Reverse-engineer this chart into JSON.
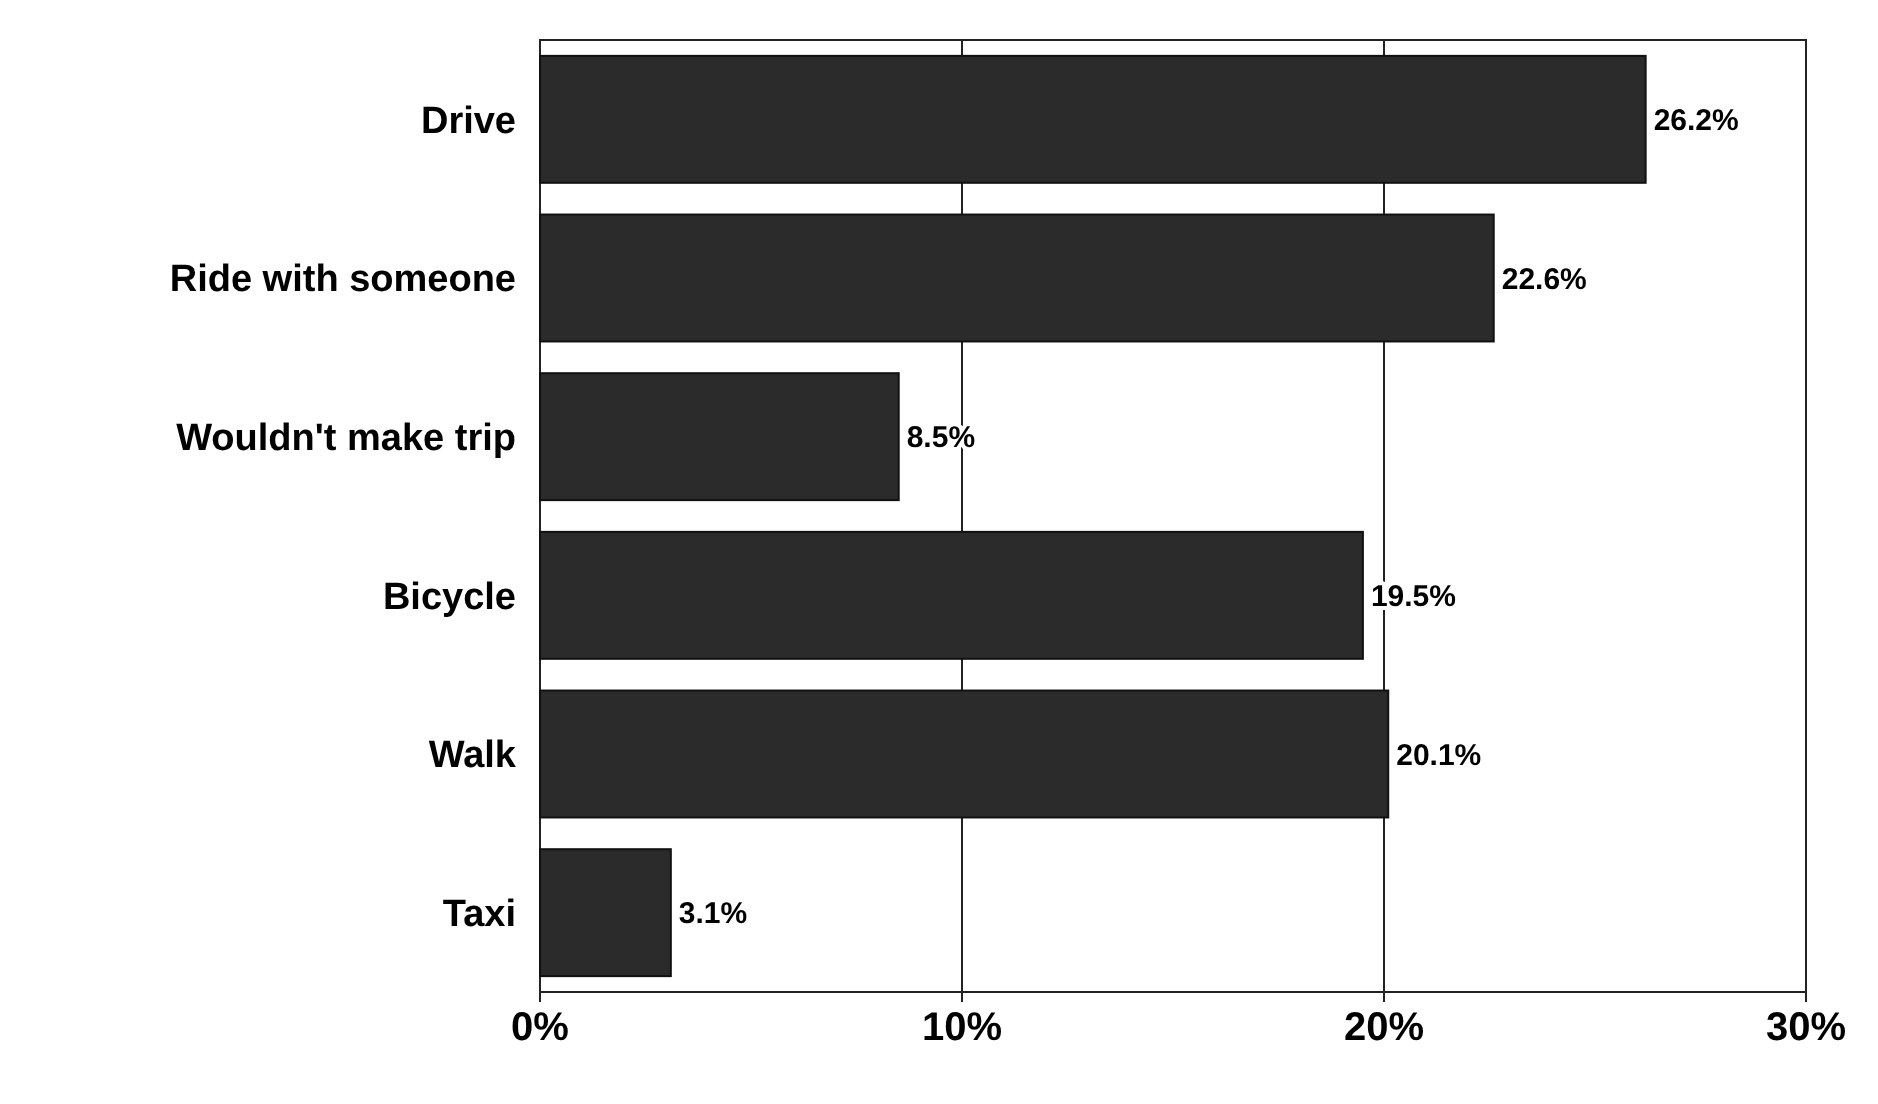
{
  "chart_data": {
    "type": "bar",
    "orientation": "horizontal",
    "categories": [
      "Drive",
      "Ride with someone",
      "Wouldn't make trip",
      "Bicycle",
      "Walk",
      "Taxi"
    ],
    "values": [
      26.2,
      22.6,
      8.5,
      19.5,
      20.1,
      3.1
    ],
    "color": "#2b2b2b",
    "value_labels": [
      "26.2%",
      "22.6%",
      "8.5%",
      "19.5%",
      "20.1%",
      "3.1%"
    ],
    "xlim": [
      0,
      30
    ],
    "xticks": [
      {
        "value": 0,
        "label": "0%"
      },
      {
        "value": 10,
        "label": "10%"
      },
      {
        "value": 20,
        "label": "20%"
      },
      {
        "value": 30,
        "label": "30%"
      }
    ],
    "grid": "x"
  }
}
